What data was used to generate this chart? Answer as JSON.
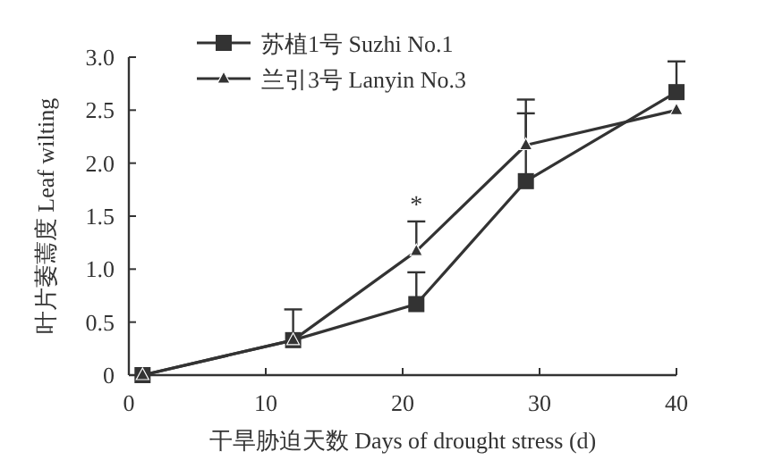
{
  "chart_data": {
    "type": "line",
    "xlabel": "干旱胁迫天数 Days of drought stress (d)",
    "ylabel": "叶片萎蔫度 Leaf wilting",
    "x": [
      1,
      12,
      21,
      29,
      40
    ],
    "series": [
      {
        "name": "苏植1号 Suzhi No.1",
        "color": "#333333",
        "marker": "square",
        "values": [
          0,
          0.33,
          0.67,
          1.83,
          2.67
        ],
        "errors": [
          null,
          [
            0.33,
            0.62
          ],
          [
            0.67,
            0.97
          ],
          [
            1.83,
            2.47
          ],
          [
            2.67,
            2.96
          ]
        ]
      },
      {
        "name": "兰引3号 Lanyin No.3",
        "color": "#333333",
        "marker": "triangle",
        "values": [
          0,
          0.33,
          1.17,
          2.17,
          2.5
        ],
        "errors": [
          null,
          null,
          [
            1.17,
            1.45
          ],
          [
            2.17,
            2.6
          ],
          null
        ]
      }
    ],
    "xlim": [
      0,
      40
    ],
    "xticks": [
      0,
      10,
      20,
      30,
      40
    ],
    "ylim": [
      0,
      3
    ],
    "yticks": [
      0,
      0.5,
      {
        "value": 1,
        "label": "1.0"
      },
      1.5,
      {
        "value": 2,
        "label": "2.0"
      },
      2.5,
      {
        "value": 3,
        "label": "3.0"
      }
    ],
    "annotations": [
      {
        "text": "*",
        "x": 21,
        "y": 1.45
      }
    ],
    "legend": "top left",
    "grid": false
  }
}
